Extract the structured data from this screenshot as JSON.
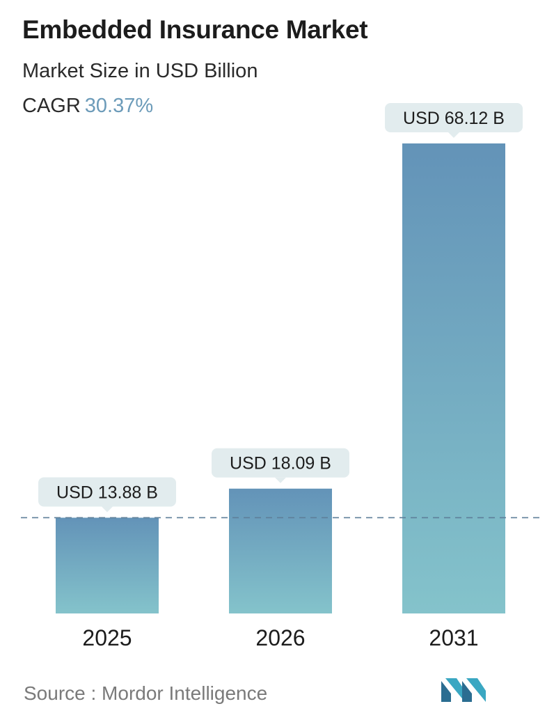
{
  "header": {
    "title": "Embedded Insurance Market",
    "subtitle": "Market Size in USD Billion",
    "cagr_label": "CAGR",
    "cagr_value": "30.37%"
  },
  "footer": {
    "source_text": "Source :  Mordor Intelligence"
  },
  "colors": {
    "bar_top": "#6393b8",
    "bar_bottom": "#84c3cb",
    "label_bg": "#e2ecee",
    "dashed_line": "#5e7f99",
    "cagr": "#6c9bb9"
  },
  "chart_data": {
    "type": "bar",
    "categories": [
      "2025",
      "2026",
      "2031"
    ],
    "values": [
      13.88,
      18.09,
      68.12
    ],
    "data_labels": [
      "USD 13.88 B",
      "USD 18.09 B",
      "USD 68.12 B"
    ],
    "reference_line": 13.88,
    "ylim": [
      0,
      68.12
    ],
    "grid": false,
    "xlabel": "",
    "ylabel": ""
  }
}
